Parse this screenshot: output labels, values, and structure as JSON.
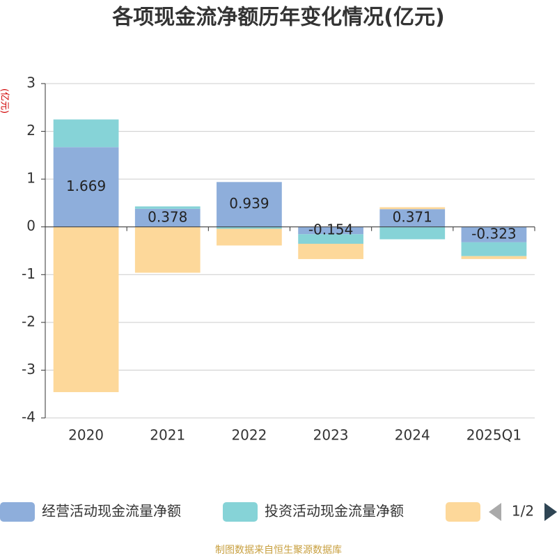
{
  "chart_data": {
    "type": "bar",
    "title": "各项现金流净额历年变化情况(亿元)",
    "y_label": "(亿元)",
    "categories": [
      "2020",
      "2021",
      "2022",
      "2023",
      "2024",
      "2025Q1"
    ],
    "series": [
      {
        "name": "经营活动现金流量净额",
        "color": "#8eaedb",
        "values": [
          1.669,
          0.378,
          0.939,
          -0.154,
          0.371,
          -0.323
        ]
      },
      {
        "name": "投资活动现金流量净额",
        "color": "#86d3d7",
        "values": [
          0.58,
          0.05,
          -0.04,
          -0.2,
          -0.26,
          -0.29
        ]
      },
      {
        "color": "#fdd89a",
        "values": [
          -3.46,
          -0.96,
          -0.35,
          -0.32,
          0.04,
          -0.06
        ]
      }
    ],
    "ylim": [
      -4,
      3
    ],
    "yticks": [
      -4,
      -3,
      -2,
      -1,
      0,
      1,
      2,
      3
    ],
    "grid": true,
    "legend_page": "1/2",
    "source": "制图数据来自恒生聚源数据库"
  }
}
